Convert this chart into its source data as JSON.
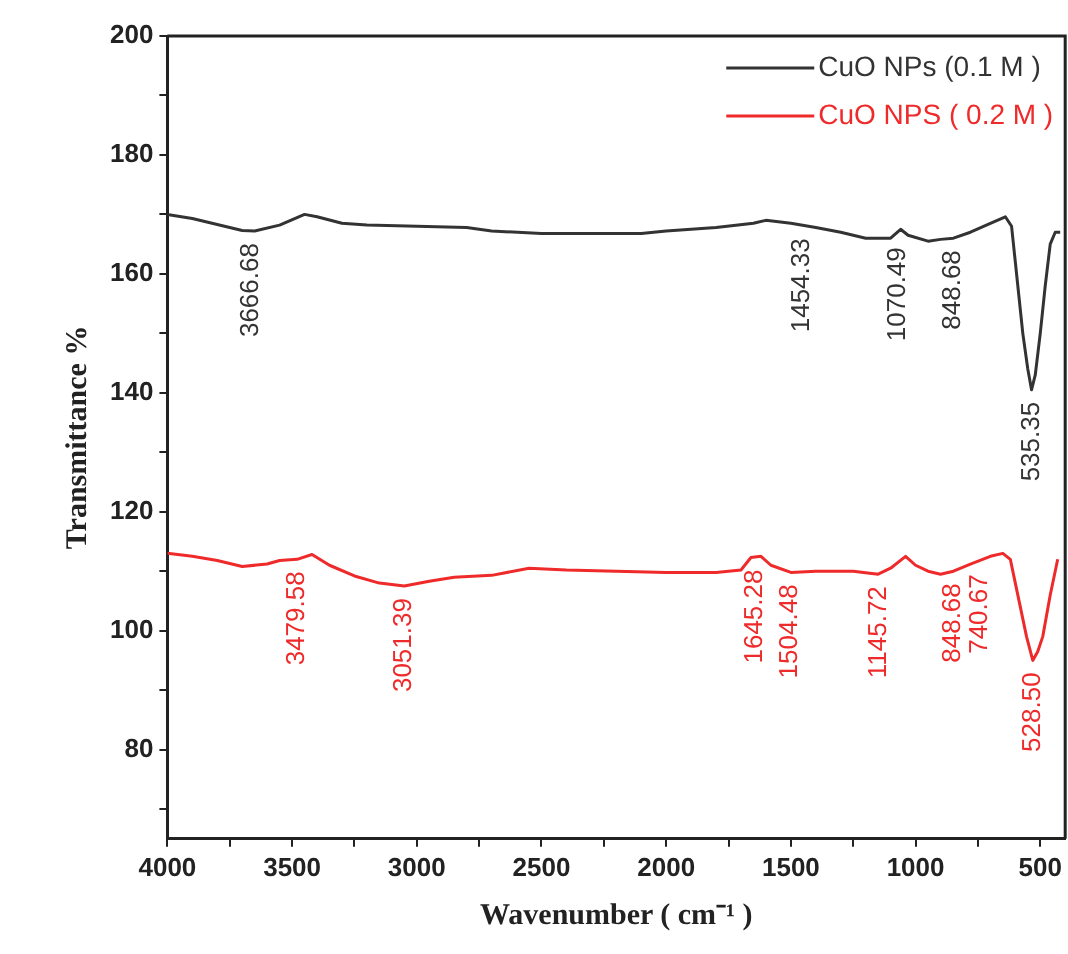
{
  "chart_data": {
    "type": "line",
    "xlabel": "Wavenumber ( cm⁻¹ )",
    "ylabel": "Transmittance %",
    "xlim": [
      4000,
      400
    ],
    "ylim": [
      65,
      200
    ],
    "xticks": [
      4000,
      {
        "value": 3750,
        "label": null
      },
      3500,
      {
        "value": 3250,
        "label": null
      },
      3000,
      {
        "value": 2750,
        "label": null
      },
      2500,
      {
        "value": 2250,
        "label": null
      },
      2000,
      {
        "value": 1750,
        "label": null
      },
      1500,
      {
        "value": 1250,
        "label": null
      },
      1000,
      {
        "value": 750,
        "label": null
      },
      500
    ],
    "yticks": [
      {
        "value": 70,
        "label": null
      },
      80,
      {
        "value": 90,
        "label": null
      },
      100,
      {
        "value": 110,
        "label": null
      },
      120,
      {
        "value": 130,
        "label": null
      },
      140,
      {
        "value": 150,
        "label": null
      },
      160,
      {
        "value": 170,
        "label": null
      },
      180,
      {
        "value": 190,
        "label": null
      },
      200
    ],
    "grid": false,
    "legend": "top right",
    "marker": "none",
    "series": [
      {
        "name": "CuO NPs (0.1 M )",
        "color": "#333333",
        "x": [
          4000,
          3900,
          3800,
          3700,
          3650,
          3550,
          3450,
          3400,
          3300,
          3200,
          3000,
          2800,
          2700,
          2500,
          2300,
          2100,
          2000,
          1800,
          1650,
          1600,
          1500,
          1400,
          1300,
          1200,
          1100,
          1060,
          1030,
          950,
          900,
          848,
          780,
          700,
          640,
          615,
          590,
          570,
          550,
          535,
          520,
          500,
          480,
          460,
          440,
          420
        ],
        "values": [
          170,
          169.3,
          168.3,
          167.3,
          167.2,
          168.2,
          170,
          169.6,
          168.5,
          168.2,
          168,
          167.8,
          167.2,
          166.8,
          166.8,
          166.8,
          167.2,
          167.8,
          168.5,
          169,
          168.5,
          167.8,
          167,
          166,
          166,
          167.5,
          166.5,
          165.5,
          165.8,
          166,
          167,
          168.5,
          169.6,
          168,
          158,
          150,
          144,
          140.5,
          143,
          150,
          158,
          165,
          167,
          167
        ]
      },
      {
        "name": "CuO NPS ( 0.2 M )",
        "color": "#ee2a2a",
        "x": [
          4000,
          3900,
          3800,
          3700,
          3600,
          3550,
          3480,
          3420,
          3350,
          3250,
          3150,
          3050,
          2950,
          2850,
          2700,
          2550,
          2400,
          2200,
          2000,
          1800,
          1700,
          1660,
          1620,
          1580,
          1500,
          1400,
          1250,
          1150,
          1100,
          1040,
          1000,
          950,
          900,
          848,
          780,
          700,
          650,
          620,
          600,
          580,
          555,
          530,
          510,
          490,
          460,
          430
        ],
        "values": [
          113,
          112.5,
          111.8,
          110.8,
          111.2,
          111.8,
          112,
          112.8,
          111,
          109.2,
          108,
          107.5,
          108.3,
          109,
          109.3,
          110.5,
          110.2,
          110,
          109.8,
          109.8,
          110.2,
          112.3,
          112.5,
          111,
          109.8,
          110,
          110,
          109.5,
          110.5,
          112.5,
          111,
          110,
          109.5,
          110,
          111.2,
          112.5,
          113,
          112,
          108,
          104,
          99,
          95,
          96.5,
          99,
          106,
          112
        ]
      }
    ],
    "annotations": [
      {
        "text": "3666.68",
        "x": 3666.68,
        "y": 167.2
      },
      {
        "text": "1454.33",
        "x": 1454.33,
        "y": 168
      },
      {
        "text": "1070.49",
        "x": 1070.49,
        "y": 166.5
      },
      {
        "text": "848.68",
        "x": 848.68,
        "y": 166
      },
      {
        "text": "535.35",
        "x": 535.35,
        "y": 140.5
      },
      {
        "text": "3479.58",
        "x": 3479.58,
        "y": 112
      },
      {
        "text": "3051.39",
        "x": 3051.39,
        "y": 107.5
      },
      {
        "text": "1645.28",
        "x": 1645.28,
        "y": 112.3
      },
      {
        "text": "1504.48",
        "x": 1504.48,
        "y": 109.8
      },
      {
        "text": "1145.72",
        "x": 1145.72,
        "y": 109.5
      },
      {
        "text": "848.68",
        "x": 848.68,
        "y": 110
      },
      {
        "text": "740.67",
        "x": 740.67,
        "y": 111.5
      },
      {
        "text": "528.50",
        "x": 528.5,
        "y": 95
      }
    ]
  }
}
